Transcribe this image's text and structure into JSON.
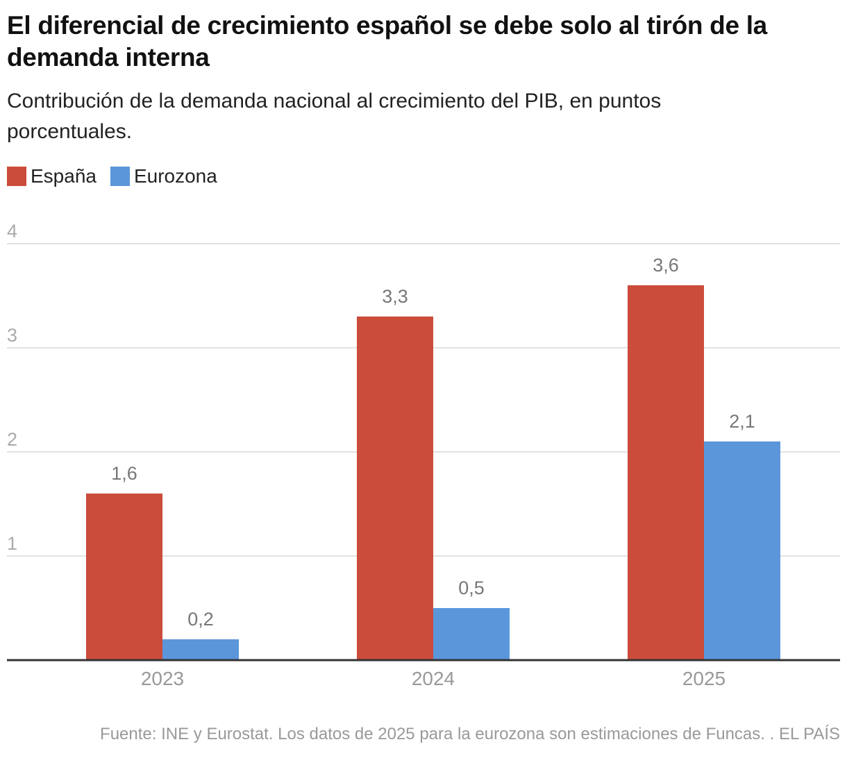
{
  "title": "El diferencial de crecimiento español se debe solo al tirón de la demanda interna",
  "subtitle": "Contribución de la demanda nacional al crecimiento del PIB, en puntos porcentuales.",
  "source": "Fuente: INE y Eurostat. Los datos de 2025 para la eurozona son estimaciones de Funcas. . EL PAÍS",
  "chart_data": {
    "type": "bar",
    "categories": [
      "2023",
      "2024",
      "2025"
    ],
    "series": [
      {
        "name": "España",
        "values": [
          1.6,
          3.3,
          3.6
        ],
        "labels": [
          "1,6",
          "3,3",
          "3,6"
        ],
        "color": "#cb4c3a"
      },
      {
        "name": "Eurozona",
        "values": [
          0.2,
          0.5,
          2.1
        ],
        "labels": [
          "0,2",
          "0,5",
          "2,1"
        ],
        "color": "#5b96da"
      }
    ],
    "yticks": [
      "1",
      "2",
      "3",
      "4"
    ],
    "ylim": [
      0,
      4
    ],
    "grid": true,
    "legend": "top-left"
  }
}
